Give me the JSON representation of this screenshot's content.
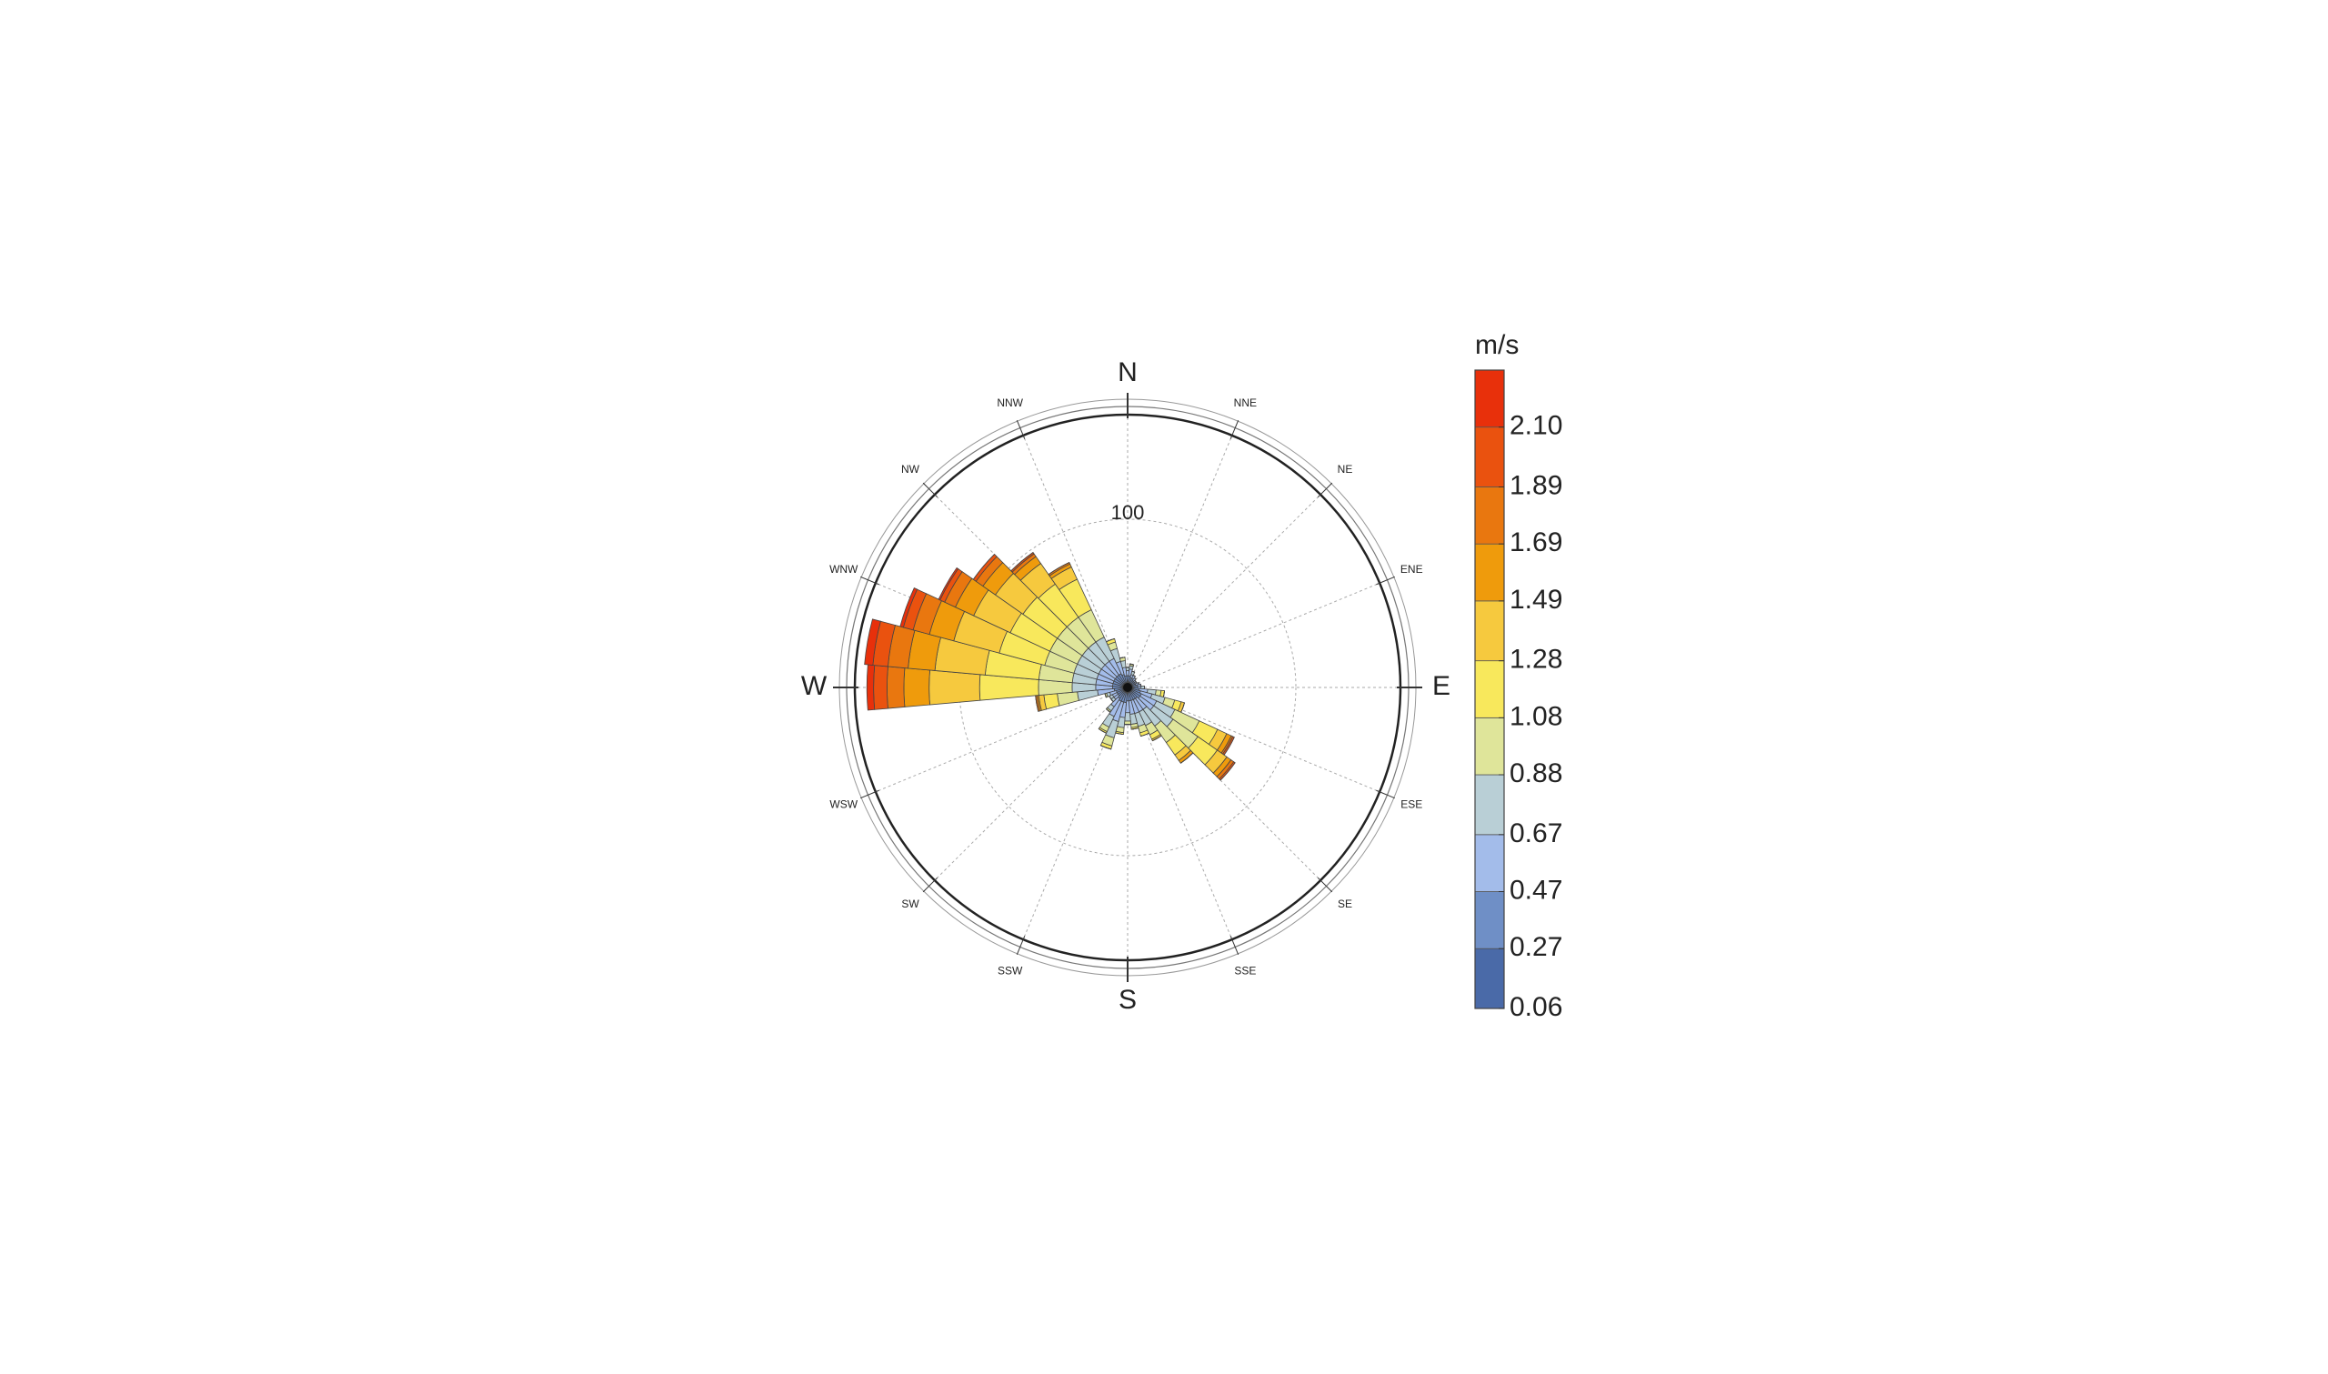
{
  "chart_data": {
    "type": "windrose",
    "directions": [
      "N",
      "NNE",
      "NE",
      "ENE",
      "E",
      "ESE",
      "SE",
      "SSE",
      "S",
      "SSW",
      "SW",
      "WSW",
      "W",
      "WNW",
      "NW",
      "NNW"
    ],
    "rlim": [
      0,
      160
    ],
    "rticks": [
      100
    ],
    "colorbar_title": "m/s",
    "clim": [
      0.06,
      2.3
    ],
    "cticks": [
      0.06,
      0.27,
      0.47,
      0.67,
      0.88,
      1.08,
      1.28,
      1.49,
      1.69,
      1.89,
      {
        "value": 2.1,
        "label": "2.10"
      }
    ],
    "x": [
      0,
      10,
      20,
      30,
      40,
      50,
      60,
      70,
      80,
      90,
      100,
      110,
      120,
      130,
      140,
      150,
      160,
      170,
      180,
      190,
      200,
      210,
      220,
      230,
      240,
      250,
      260,
      270,
      280,
      290,
      300,
      310,
      320,
      330,
      340,
      350
    ],
    "series": [
      {
        "color": "#4a6aa8",
        "values": [
          3,
          3,
          3,
          3,
          3,
          3,
          3,
          3,
          3,
          3,
          3,
          3,
          3,
          3,
          3,
          3,
          3,
          3,
          3,
          3,
          3,
          3,
          3,
          3,
          3,
          3,
          3,
          3,
          3,
          3,
          3,
          3,
          3,
          3,
          3,
          3
        ]
      },
      {
        "color": "#6f8fc6",
        "values": [
          4,
          4,
          3,
          3,
          2,
          2,
          2,
          2,
          3,
          3,
          4,
          5,
          6,
          6,
          5,
          5,
          5,
          5,
          5,
          6,
          6,
          6,
          5,
          4,
          4,
          4,
          5,
          6,
          6,
          6,
          6,
          6,
          6,
          6,
          5,
          4
        ]
      },
      {
        "color": "#a3bcea",
        "values": [
          3,
          4,
          2,
          2,
          2,
          1,
          1,
          2,
          2,
          2,
          5,
          7,
          10,
          10,
          8,
          8,
          8,
          8,
          7,
          9,
          12,
          10,
          6,
          3,
          3,
          4,
          10,
          10,
          10,
          10,
          10,
          10,
          10,
          10,
          8,
          5
        ]
      },
      {
        "color": "#b9cfd6",
        "values": [
          2,
          2,
          2,
          0,
          0,
          0,
          0,
          0,
          0,
          2,
          5,
          8,
          12,
          14,
          12,
          9,
          8,
          6,
          5,
          6,
          10,
          7,
          3,
          2,
          2,
          2,
          12,
          14,
          14,
          14,
          14,
          14,
          14,
          14,
          8,
          4
        ]
      },
      {
        "color": "#dfe59a",
        "values": [
          0,
          1,
          0,
          0,
          0,
          0,
          0,
          0,
          0,
          0,
          3,
          6,
          16,
          18,
          12,
          6,
          4,
          2,
          2,
          3,
          5,
          3,
          1,
          0,
          0,
          1,
          12,
          20,
          20,
          18,
          18,
          18,
          18,
          18,
          4,
          2
        ]
      },
      {
        "color": "#f8e85c",
        "values": [
          0,
          0,
          0,
          0,
          0,
          0,
          0,
          0,
          0,
          0,
          2,
          4,
          12,
          14,
          9,
          3,
          2,
          1,
          0,
          1,
          2,
          1,
          0,
          0,
          0,
          0,
          8,
          35,
          32,
          28,
          26,
          25,
          24,
          20,
          2,
          0
        ]
      },
      {
        "color": "#f6c93e",
        "values": [
          0,
          0,
          0,
          0,
          0,
          0,
          0,
          0,
          0,
          0,
          0,
          2,
          6,
          7,
          4,
          1,
          0,
          0,
          0,
          0,
          0,
          0,
          0,
          0,
          0,
          0,
          3,
          30,
          30,
          28,
          24,
          20,
          15,
          8,
          0,
          0
        ]
      },
      {
        "color": "#ef9b0c",
        "values": [
          0,
          0,
          0,
          0,
          0,
          0,
          0,
          0,
          0,
          0,
          0,
          0,
          3,
          3,
          2,
          0,
          0,
          0,
          0,
          0,
          0,
          0,
          0,
          0,
          0,
          0,
          1,
          15,
          16,
          15,
          12,
          9,
          5,
          2,
          0,
          0
        ]
      },
      {
        "color": "#e9770f",
        "values": [
          0,
          0,
          0,
          0,
          0,
          0,
          0,
          0,
          0,
          0,
          0,
          0,
          1,
          2,
          0,
          0,
          0,
          0,
          0,
          0,
          0,
          0,
          0,
          0,
          0,
          0,
          1,
          10,
          12,
          10,
          7,
          5,
          2,
          1,
          0,
          0
        ]
      },
      {
        "color": "#ea520f",
        "values": [
          0,
          0,
          0,
          0,
          0,
          0,
          0,
          0,
          0,
          0,
          0,
          0,
          1,
          1,
          0,
          0,
          0,
          0,
          0,
          0,
          0,
          0,
          0,
          0,
          0,
          0,
          0,
          8,
          9,
          6,
          3,
          2,
          1,
          0,
          0,
          0
        ]
      },
      {
        "color": "#e8300b",
        "values": [
          0,
          0,
          0,
          0,
          0,
          0,
          0,
          0,
          0,
          0,
          0,
          0,
          0,
          0,
          0,
          0,
          0,
          0,
          0,
          0,
          0,
          0,
          0,
          0,
          0,
          0,
          0,
          4,
          5,
          2,
          1,
          0,
          0,
          0,
          0,
          0
        ]
      }
    ]
  }
}
